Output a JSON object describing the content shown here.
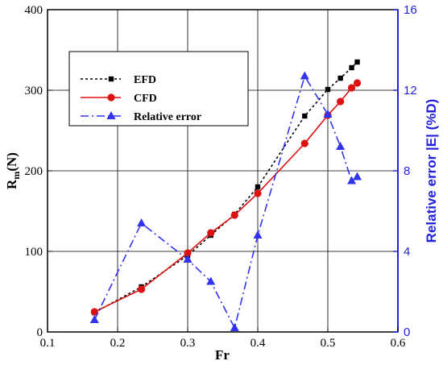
{
  "chart_data": {
    "type": "line",
    "xlabel": "Fr",
    "ylabel_main": "R",
    "ylabel_sub": "m",
    "ylabel_unit": "(N)",
    "y2label": "Relative error |E| (%D)",
    "xlim": [
      0.1,
      0.6
    ],
    "ylim": [
      0,
      400
    ],
    "y2lim": [
      0,
      16
    ],
    "xticks": [
      0.1,
      0.2,
      0.3,
      0.4,
      0.5,
      0.6
    ],
    "yticks": [
      0,
      100,
      200,
      300,
      400
    ],
    "y2ticks": [
      0,
      4,
      8,
      12,
      16
    ],
    "grid": true,
    "legend_position": "upper-left",
    "series": [
      {
        "name": "EFD",
        "axis": "left",
        "color": "#000000",
        "line_style": "dotted",
        "marker": "square",
        "x": [
          0.167,
          0.234,
          0.3,
          0.333,
          0.367,
          0.4,
          0.467,
          0.5,
          0.518,
          0.534,
          0.542
        ],
        "values": [
          24,
          56,
          95,
          120,
          146,
          180,
          268,
          301,
          315,
          328,
          335
        ]
      },
      {
        "name": "CFD",
        "axis": "left",
        "color": "#dd1111",
        "line_style": "solid",
        "marker": "circle",
        "x": [
          0.167,
          0.234,
          0.3,
          0.333,
          0.367,
          0.4,
          0.467,
          0.5,
          0.518,
          0.534,
          0.542
        ],
        "values": [
          25,
          53,
          98,
          123,
          145,
          172,
          234,
          269,
          286,
          303,
          309
        ]
      },
      {
        "name": "Relative error",
        "axis": "right",
        "color": "#3333ee",
        "line_style": "dash-dot",
        "marker": "triangle",
        "x": [
          0.167,
          0.234,
          0.3,
          0.333,
          0.367,
          0.4,
          0.467,
          0.5,
          0.518,
          0.534,
          0.542
        ],
        "values": [
          0.6,
          5.4,
          3.6,
          2.5,
          0.2,
          4.8,
          12.7,
          10.8,
          9.2,
          7.5,
          7.7
        ]
      }
    ]
  }
}
